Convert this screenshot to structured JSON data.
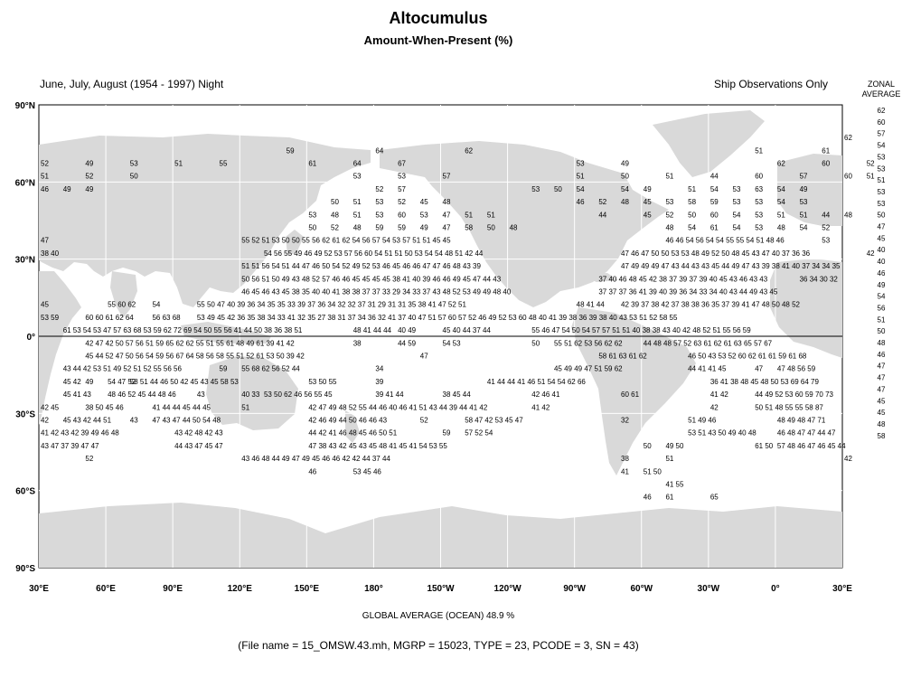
{
  "title": "Altocumulus",
  "subtitle": "Amount-When-Present (%)",
  "season": "June, July, August (1954 - 1997) Night",
  "source_note": "Ship Observations Only",
  "zonal_header": [
    "ZONAL",
    "AVERAGE"
  ],
  "lat_labels": [
    "90°N",
    "60°N",
    "30°N",
    "0°",
    "30°S",
    "60°S",
    "90°S"
  ],
  "lon_labels": [
    "30°E",
    "60°E",
    "90°E",
    "120°E",
    "150°E",
    "180°",
    "150°W",
    "120°W",
    "90°W",
    "60°W",
    "30°W",
    "0°",
    "30°E"
  ],
  "zonal_average": [
    "62",
    "60",
    "57",
    "54",
    "53",
    "53",
    "51",
    "53",
    "53",
    "50",
    "47",
    "45",
    "40",
    "40",
    "46",
    "49",
    "54",
    "56",
    "51",
    "50",
    "48",
    "46",
    "47",
    "47",
    "47",
    "45",
    "45",
    "48",
    "58"
  ],
  "grid_values": [
    {
      "row": 2,
      "values": [
        [
          36,
          "62"
        ]
      ]
    },
    {
      "row": 3,
      "values": [
        [
          11,
          "59"
        ],
        [
          15,
          "64"
        ],
        [
          19,
          "62"
        ],
        [
          32,
          "51"
        ],
        [
          35,
          "61"
        ]
      ]
    },
    {
      "row": 4,
      "values": [
        [
          0,
          "52"
        ],
        [
          2,
          "49"
        ],
        [
          4,
          "53"
        ],
        [
          6,
          "51"
        ],
        [
          8,
          "55"
        ],
        [
          12,
          "61"
        ],
        [
          14,
          "64"
        ],
        [
          16,
          "67"
        ],
        [
          24,
          "53"
        ],
        [
          26,
          "49"
        ],
        [
          33,
          "62"
        ],
        [
          35,
          "60"
        ],
        [
          37,
          "52"
        ]
      ]
    },
    {
      "row": 5,
      "values": [
        [
          0,
          "51"
        ],
        [
          2,
          "52"
        ],
        [
          4,
          "50"
        ],
        [
          14,
          "53"
        ],
        [
          16,
          "53"
        ],
        [
          18,
          "57"
        ],
        [
          24,
          "51"
        ],
        [
          26,
          "50"
        ],
        [
          28,
          "51"
        ],
        [
          30,
          "44"
        ],
        [
          32,
          "60"
        ],
        [
          34,
          "57"
        ],
        [
          36,
          "60"
        ],
        [
          37,
          "51"
        ]
      ]
    },
    {
      "row": 6,
      "values": [
        [
          0,
          "46"
        ],
        [
          1,
          "49"
        ],
        [
          2,
          "49"
        ],
        [
          15,
          "52"
        ],
        [
          16,
          "57"
        ],
        [
          22,
          "53"
        ],
        [
          23,
          "50"
        ],
        [
          24,
          "54"
        ],
        [
          26,
          "54"
        ],
        [
          27,
          "49"
        ],
        [
          29,
          "51"
        ],
        [
          30,
          "54"
        ],
        [
          31,
          "53"
        ],
        [
          32,
          "63"
        ],
        [
          33,
          "54"
        ],
        [
          34,
          "49"
        ]
      ]
    },
    {
      "row": 7,
      "values": [
        [
          13,
          "50"
        ],
        [
          14,
          "51"
        ],
        [
          15,
          "53"
        ],
        [
          16,
          "52"
        ],
        [
          17,
          "45"
        ],
        [
          18,
          "48"
        ],
        [
          24,
          "46"
        ],
        [
          25,
          "52"
        ],
        [
          26,
          "48"
        ],
        [
          27,
          "45"
        ],
        [
          28,
          "53"
        ],
        [
          29,
          "58"
        ],
        [
          30,
          "59"
        ],
        [
          31,
          "53"
        ],
        [
          32,
          "53"
        ],
        [
          33,
          "54"
        ],
        [
          34,
          "53"
        ]
      ]
    },
    {
      "row": 8,
      "values": [
        [
          12,
          "53"
        ],
        [
          13,
          "48"
        ],
        [
          14,
          "51"
        ],
        [
          15,
          "53"
        ],
        [
          16,
          "60"
        ],
        [
          17,
          "53"
        ],
        [
          18,
          "47"
        ],
        [
          19,
          "51"
        ],
        [
          20,
          "51"
        ],
        [
          25,
          "44"
        ],
        [
          27,
          "45"
        ],
        [
          28,
          "52"
        ],
        [
          29,
          "50"
        ],
        [
          30,
          "60"
        ],
        [
          31,
          "54"
        ],
        [
          32,
          "53"
        ],
        [
          33,
          "51"
        ],
        [
          34,
          "51"
        ],
        [
          35,
          "44"
        ],
        [
          36,
          "48"
        ]
      ]
    },
    {
      "row": 9,
      "values": [
        [
          12,
          "50"
        ],
        [
          13,
          "52"
        ],
        [
          14,
          "48"
        ],
        [
          15,
          "59"
        ],
        [
          16,
          "59"
        ],
        [
          17,
          "49"
        ],
        [
          18,
          "47"
        ],
        [
          19,
          "58"
        ],
        [
          20,
          "50"
        ],
        [
          21,
          "48"
        ],
        [
          28,
          "48"
        ],
        [
          29,
          "54"
        ],
        [
          30,
          "61"
        ],
        [
          31,
          "54"
        ],
        [
          32,
          "53"
        ],
        [
          33,
          "48"
        ],
        [
          34,
          "54"
        ],
        [
          35,
          "52"
        ]
      ]
    },
    {
      "row": 10,
      "values": [
        [
          0,
          "47"
        ],
        [
          9,
          "55 52 51 53 50 50 55 56 62 61 62 54 56 57 54 53 57 51 51 45 45"
        ],
        [
          28,
          "46 46 54 56 54 54 55 55 54 51 48 46"
        ],
        [
          35,
          "53"
        ]
      ]
    },
    {
      "row": 11,
      "values": [
        [
          0,
          "38 40"
        ],
        [
          10,
          "54 56 55 49 46 49 52 53 57 56 60 54 51 51 50 53 54 54 48 51 42 44"
        ],
        [
          26,
          "47 46 47 50 50 53 53 48 49 52 50 48 45 43 47 40 37 36 36"
        ],
        [
          37,
          "42"
        ]
      ]
    },
    {
      "row": 12,
      "values": [
        [
          9,
          "51 51 56 54 51 44 47 46 50 54 52 49 52 53 46 45 46 46 47 47 46 48 43 39"
        ],
        [
          26,
          "47 49 49 49 47 43 44 43 43 45 44 49 47 43 39 38 41 40 37 34 34 35"
        ]
      ]
    },
    {
      "row": 13,
      "values": [
        [
          9,
          "50 56 51 50 49 43 48 52 57 46 46 45 45 45 45 38 41 40 39 46 46 49 45 47 44 43"
        ],
        [
          25,
          "37 40 46 48 45 42 38 37 39 37 39 40 45 43 46 43 43"
        ],
        [
          34,
          "36 34 30 32"
        ]
      ]
    },
    {
      "row": 14,
      "values": [
        [
          9,
          "46 45 46 43 45 38 35 40 40 41 38 38 37 37 33 29 34 33 37 43 48 52 53 49 49 48 40"
        ],
        [
          25,
          "37 37 37 36 41 39 40 39 36 34 33 34 40 43 44 49 43 45"
        ]
      ]
    },
    {
      "row": 15,
      "values": [
        [
          0,
          "45"
        ],
        [
          3,
          "55 60 62"
        ],
        [
          5,
          "54"
        ],
        [
          7,
          "55 50 47 40 39 36 34 35 35 33 39 37 36 34 32 32 37 31 29 31 31 35 38 41 47 52 51"
        ],
        [
          24,
          "48 41 44"
        ],
        [
          26,
          "42 39 37 38 42 37 38 38 36 35 37 39 41 47 48 50 48 52"
        ]
      ]
    },
    {
      "row": 16,
      "values": [
        [
          0,
          "53 59"
        ],
        [
          2,
          "60 60 61 62 64"
        ],
        [
          5,
          "56 63 68"
        ],
        [
          7,
          "53 49 45 42 36 35 38 34 33 41 32 35 27 38 31 37 34 36 32 41 37 40 47 51 57 60 57 52 46 49 52 53 60 48 40 41 39 38 36 39 38 40 43 53 51 52 58 55"
        ]
      ]
    },
    {
      "row": 17,
      "values": [
        [
          1,
          "61 53 54 53 47 57 63 68 53 59 62 72 69 54 50 55 56 41 44 50 38 36 38 51"
        ],
        [
          14,
          "48 41 44 44"
        ],
        [
          16,
          "40 49"
        ],
        [
          18,
          "45 40 44 37 44"
        ],
        [
          22,
          "55 46 47 54 50 54 57 57 51 51 40 38 38 43 40 42 48 52 51 55 56 59"
        ]
      ]
    },
    {
      "row": 18,
      "values": [
        [
          2,
          "42 47 42 50 57 56 51 59 65 62 62 55 51 55 61 48 49 61 39 41 42"
        ],
        [
          14,
          "38"
        ],
        [
          16,
          "44 59"
        ],
        [
          18,
          "54 53"
        ],
        [
          22,
          "50"
        ],
        [
          23,
          "55 51 62 53 56 62 62"
        ],
        [
          27,
          "44 48 48 57 52 63 61 62 61 63 65 57 67"
        ]
      ]
    },
    {
      "row": 19,
      "values": [
        [
          2,
          "45 44 52 47 50 56 54 59 56 67 64 58 56 58 55 51 52 61 53 50 39 42"
        ],
        [
          17,
          "47"
        ],
        [
          25,
          "58 61 63 61 62"
        ],
        [
          29,
          "46 50 43 53 52 60 62 61 61 59 61 68"
        ]
      ]
    },
    {
      "row": 20,
      "values": [
        [
          1,
          "43 44 42 53 51 49 52 51 52 55 56 56"
        ],
        [
          8,
          "59"
        ],
        [
          9,
          "55 68 62 56 52 44"
        ],
        [
          15,
          "34"
        ],
        [
          23,
          "45 49 49 47 51 59 62"
        ],
        [
          29,
          "44 41 41 45"
        ],
        [
          32,
          "47"
        ],
        [
          33,
          "47 48 56 59"
        ]
      ]
    },
    {
      "row": 21,
      "values": [
        [
          1,
          "45 42"
        ],
        [
          2,
          "49"
        ],
        [
          3,
          "54 47 52"
        ],
        [
          4,
          "58 51 44 46 50 42 45 43 45 58 53"
        ],
        [
          12,
          "53 50 55"
        ],
        [
          15,
          "39"
        ],
        [
          20,
          "41 44 44 41 46 51 54 54 62 66"
        ],
        [
          30,
          "36 41 38 48 45 48 50 53 69 64 79"
        ]
      ]
    },
    {
      "row": 22,
      "values": [
        [
          1,
          "45 41 43"
        ],
        [
          3,
          "48 46 52 45 44 48 46"
        ],
        [
          7,
          "43"
        ],
        [
          9,
          "40 33"
        ],
        [
          10,
          "53 50 62 46 56 55 45"
        ],
        [
          15,
          "39 41 44"
        ],
        [
          18,
          "38 45 44"
        ],
        [
          22,
          "42 46 41"
        ],
        [
          26,
          "60 61"
        ],
        [
          30,
          "41 42"
        ],
        [
          32,
          "44 49 52 53 60 59 70 73"
        ]
      ]
    },
    {
      "row": 23,
      "values": [
        [
          0,
          "42 45"
        ],
        [
          2,
          "38 50 45 46"
        ],
        [
          5,
          "41 44 44 45 44 45"
        ],
        [
          9,
          "51"
        ],
        [
          12,
          "42 47 49 48 52 55 44 46 40 46 41 51 43 44 39 44 41 42"
        ],
        [
          22,
          "41 42"
        ],
        [
          30,
          "42"
        ],
        [
          32,
          "50 51 48 55 55 58 87"
        ]
      ]
    },
    {
      "row": 24,
      "values": [
        [
          0,
          "42"
        ],
        [
          1,
          "45 43 42 44 51"
        ],
        [
          4,
          "43"
        ],
        [
          5,
          "47 43 47 44 50 54 48"
        ],
        [
          12,
          "42 46 49 44 50 46 46 43"
        ],
        [
          17,
          "52"
        ],
        [
          19,
          "58 47 42 53 45 47"
        ],
        [
          26,
          "32"
        ],
        [
          29,
          "51 49 46"
        ],
        [
          33,
          "48 49 48 47 71"
        ]
      ]
    },
    {
      "row": 25,
      "values": [
        [
          0,
          "41 42 43 42 39 49 46 48"
        ],
        [
          6,
          "43 42 48 42 43"
        ],
        [
          12,
          "44 42 41 46 48 45 46 50 51"
        ],
        [
          18,
          "59"
        ],
        [
          19,
          "57 52 54"
        ],
        [
          29,
          "53 51 43 50 49 40 48"
        ],
        [
          33,
          "46 48 47 47 44 47"
        ]
      ]
    },
    {
      "row": 26,
      "values": [
        [
          0,
          "43 47 37 39 47 47"
        ],
        [
          6,
          "44 43 47 45 47"
        ],
        [
          12,
          "47 38 43 42 45 43 45 48 41 45 41 54 53 55"
        ],
        [
          27,
          "50"
        ],
        [
          28,
          "49 50"
        ],
        [
          32,
          "61 50"
        ],
        [
          33,
          "57 48 46 47 46 45 44"
        ]
      ]
    },
    {
      "row": 27,
      "values": [
        [
          2,
          "52"
        ],
        [
          9,
          "43 46 48 44 49 47 49 45 46 46 42 42 44 37 44"
        ],
        [
          26,
          "38"
        ],
        [
          28,
          "51"
        ],
        [
          36,
          "42"
        ]
      ]
    },
    {
      "row": 28,
      "values": [
        [
          12,
          "46"
        ],
        [
          14,
          "53 45 46"
        ],
        [
          26,
          "41"
        ],
        [
          27,
          "51 50"
        ]
      ]
    },
    {
      "row": 29,
      "values": [
        [
          28,
          "41 55"
        ]
      ]
    },
    {
      "row": 30,
      "values": [
        [
          27,
          "46"
        ],
        [
          28,
          "61"
        ],
        [
          30,
          "65"
        ]
      ]
    }
  ],
  "global_average": "GLOBAL AVERAGE (OCEAN)   48.9 %",
  "file_info": "(File name = 15_OMSW.43.mh, MGRP = 15023, TYPE = 23, PCODE = 3, SN = 43)",
  "colors": {
    "land": "#d9d9d9",
    "ocean": "#ffffff",
    "grid": "#ffffff",
    "border": "#000000",
    "text": "#000000"
  }
}
